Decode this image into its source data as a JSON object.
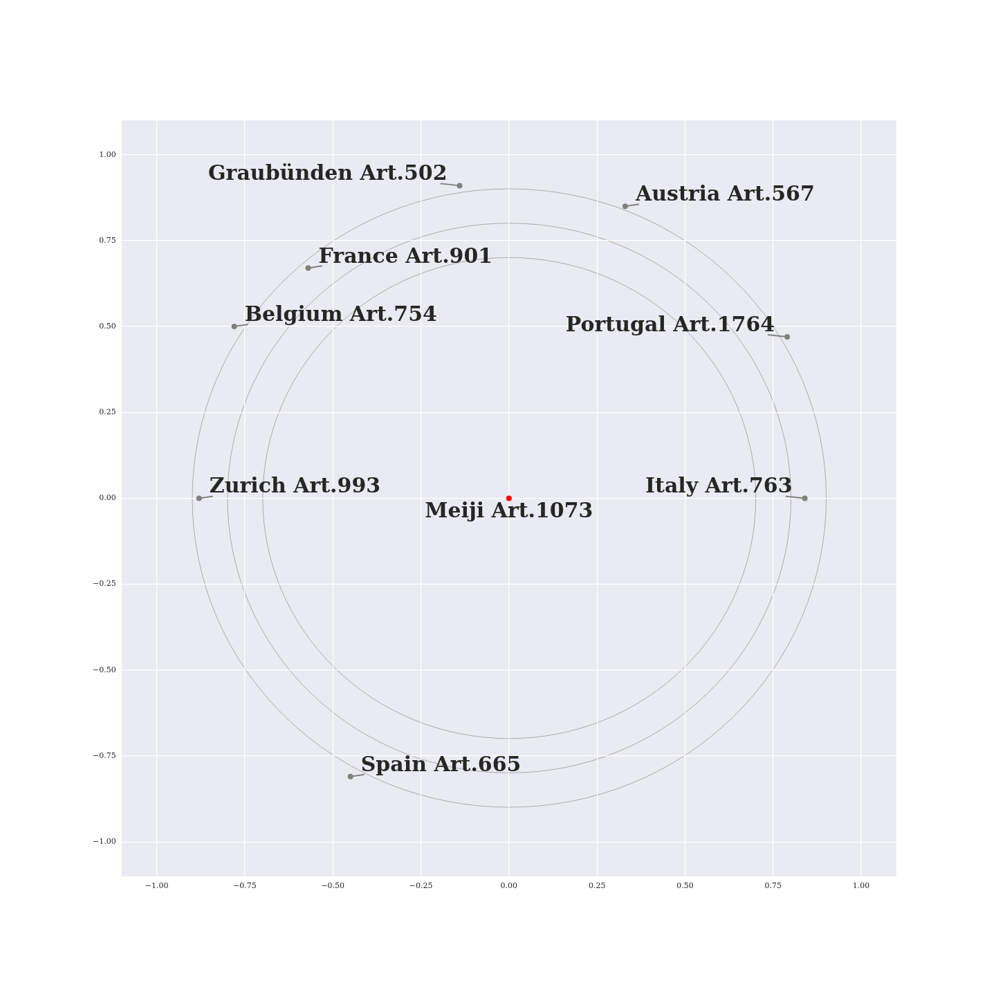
{
  "chart_data": {
    "type": "scatter",
    "xlim": [
      -1.1,
      1.1
    ],
    "ylim": [
      -1.1,
      1.1
    ],
    "xticks": [
      {
        "value": -1,
        "label": "−1.00"
      },
      {
        "value": -0.75,
        "label": "−0.75"
      },
      {
        "value": -0.5,
        "label": "−0.50"
      },
      {
        "value": -0.25,
        "label": "−0.25"
      },
      {
        "value": 0,
        "label": "0.00"
      },
      {
        "value": 0.25,
        "label": "0.25"
      },
      {
        "value": 0.5,
        "label": "0.50"
      },
      {
        "value": 0.75,
        "label": "0.75"
      },
      {
        "value": 1,
        "label": "1.00"
      }
    ],
    "yticks": [
      {
        "value": -1,
        "label": "−1.00"
      },
      {
        "value": -0.75,
        "label": "−0.75"
      },
      {
        "value": -0.5,
        "label": "−0.50"
      },
      {
        "value": -0.25,
        "label": "−0.25"
      },
      {
        "value": 0,
        "label": "0.00"
      },
      {
        "value": 0.25,
        "label": "0.25"
      },
      {
        "value": 0.5,
        "label": "0.50"
      },
      {
        "value": 0.75,
        "label": "0.75"
      },
      {
        "value": 1,
        "label": "1.00"
      }
    ],
    "grid": true,
    "legend": false,
    "marker": "circle",
    "series": [
      {
        "color": "#808080",
        "x": [
          -0.14,
          0.33,
          -0.57,
          -0.78,
          0.79,
          -0.88,
          0.84,
          -0.45
        ],
        "values": [
          0.91,
          0.85,
          0.67,
          0.5,
          0.47,
          0,
          0,
          -0.81
        ]
      },
      {
        "color": "#ff0000",
        "x": [
          0
        ],
        "values": [
          0
        ]
      }
    ],
    "annotations": [
      {
        "text": "Graubünden Art.502",
        "x": -0.14,
        "y": 0.91
      },
      {
        "text": "Austria Art.567",
        "x": 0.33,
        "y": 0.85
      },
      {
        "text": "France Art.901",
        "x": -0.57,
        "y": 0.67
      },
      {
        "text": "Belgium Art.754",
        "x": -0.78,
        "y": 0.5
      },
      {
        "text": "Portugal Art.1764",
        "x": 0.79,
        "y": 0.47
      },
      {
        "text": "Zurich Art.993",
        "x": -0.88,
        "y": 0
      },
      {
        "text": "Italy Art.763",
        "x": 0.84,
        "y": 0
      },
      {
        "text": "Spain Art.665",
        "x": -0.45,
        "y": -0.81
      },
      {
        "text": "Meiji Art.1073",
        "x": 0,
        "y": 0
      }
    ]
  }
}
